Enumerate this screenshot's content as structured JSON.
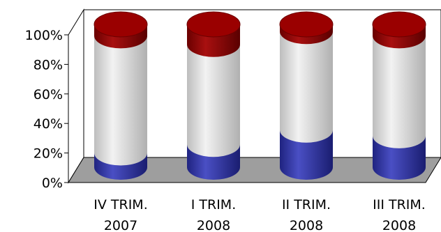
{
  "chart_data": {
    "type": "bar",
    "subtype": "stacked-percent-3d-cylinder",
    "title": "",
    "xlabel": "",
    "ylabel": "",
    "ylim": [
      0,
      100
    ],
    "y_ticks": [
      "0%",
      "20%",
      "40%",
      "60%",
      "80%",
      "100%"
    ],
    "categories": [
      [
        "IV TRIM.",
        "2007"
      ],
      [
        "I TRIM.",
        "2008"
      ],
      [
        "II TRIM.",
        "2008"
      ],
      [
        "III TRIM.",
        "2008"
      ]
    ],
    "series": [
      {
        "color": "#2b2f9e",
        "values": [
          10,
          16,
          26,
          22
        ]
      },
      {
        "color": "#d9d9d9",
        "values": [
          82,
          70,
          69,
          70
        ]
      },
      {
        "color": "#8b0000",
        "values": [
          8,
          14,
          5,
          8
        ]
      }
    ],
    "grid": false,
    "floor_color": "#9e9e9e"
  }
}
